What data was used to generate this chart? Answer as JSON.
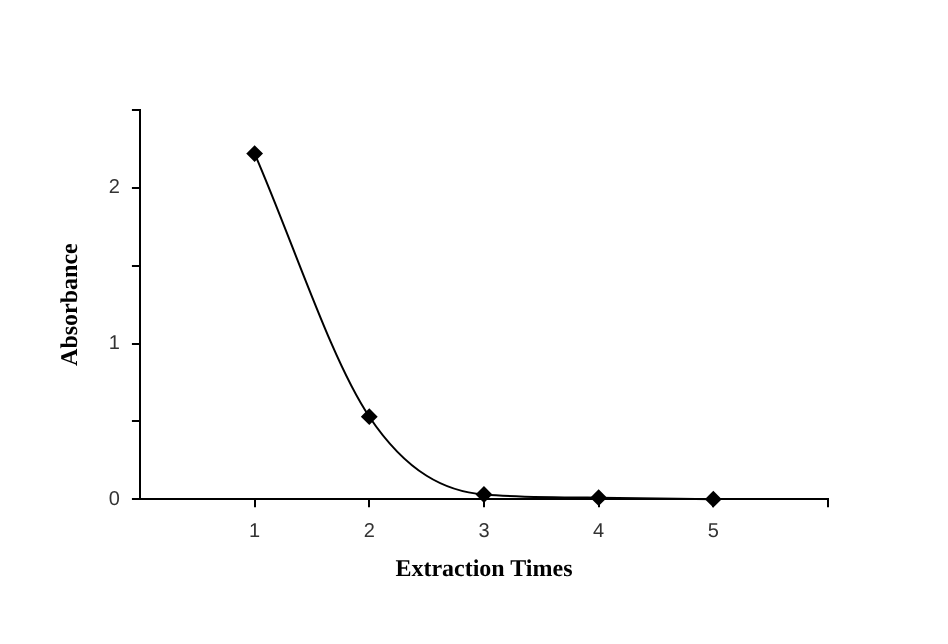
{
  "chart_data": {
    "type": "line",
    "xlabel": "Extraction Times",
    "ylabel": "Absorbance",
    "x": [
      1,
      2,
      3,
      4,
      5
    ],
    "series": [
      {
        "color": "#000000",
        "values": [
          2.22,
          0.53,
          0.03,
          0.01,
          0
        ]
      }
    ],
    "xlim": [
      0,
      6
    ],
    "xticks": [
      1,
      2,
      3,
      4,
      5,
      {
        "value": 6,
        "label": null
      }
    ],
    "ylim": [
      0,
      2.5
    ],
    "yticks": [
      0,
      {
        "value": 0.5,
        "label": null
      },
      1,
      {
        "value": 1.5,
        "label": null
      },
      2,
      {
        "value": 2.5,
        "label": null
      }
    ],
    "grid": false,
    "legend": false,
    "marker": "diamond",
    "line_style": "solid"
  }
}
